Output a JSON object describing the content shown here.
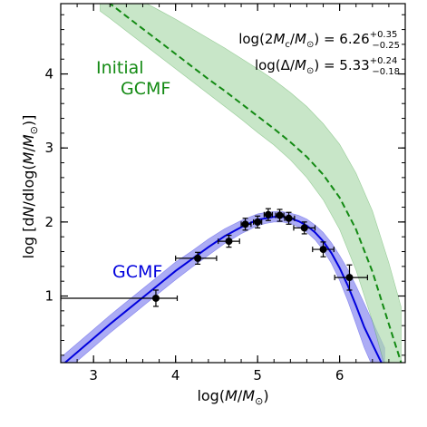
{
  "chart_data": {
    "type": "line",
    "title": "",
    "xlabel": {
      "prefix": "log(",
      "italic": "M",
      "slash": "/",
      "italic2": "M",
      "sub": "⊙",
      "suffix": ")"
    },
    "ylabel": {
      "prefix": "log [d",
      "italic": "N",
      "mid": "/dlog(",
      "italic2": "M",
      "slash": "/",
      "italic3": "M",
      "sub": "⊙",
      "suffix": ")]"
    },
    "xlim": [
      2.6,
      6.8
    ],
    "ylim": [
      0.1,
      4.95
    ],
    "xticks": [
      3,
      4,
      5,
      6
    ],
    "yticks": [
      1,
      2,
      3,
      4
    ],
    "xtick_labels": [
      "3",
      "4",
      "5",
      "6"
    ],
    "ytick_labels": [
      "1",
      "2",
      "3",
      "4"
    ],
    "grid": false,
    "annotations": [
      {
        "prefix": "log(2",
        "italic": "M",
        "sub": "c",
        "slash": "/",
        "italic2": "M",
        "sub2": "⊙",
        "suffix": ") = 6.26",
        "sup": "+0.35",
        "subv": "−0.25"
      },
      {
        "prefix": "log(Δ/",
        "italic": "M",
        "sub": "⊙",
        "suffix": ") = 5.33",
        "sup": "+0.24",
        "subv": "−0.18"
      }
    ],
    "series": [
      {
        "name": "GCMF",
        "color": "#0000dd",
        "band_color": "#8080ee",
        "x": [
          2.6,
          2.8,
          3.0,
          3.2,
          3.4,
          3.6,
          3.8,
          4.0,
          4.2,
          4.4,
          4.6,
          4.8,
          5.0,
          5.1,
          5.2,
          5.3,
          5.4,
          5.5,
          5.6,
          5.7,
          5.8,
          5.9,
          6.0,
          6.1,
          6.2,
          6.3,
          6.4,
          6.5,
          6.55
        ],
        "y": [
          0.05,
          0.24,
          0.43,
          0.62,
          0.8,
          0.98,
          1.16,
          1.34,
          1.5,
          1.66,
          1.81,
          1.93,
          2.03,
          2.05,
          2.07,
          2.07,
          2.05,
          2.01,
          1.95,
          1.86,
          1.74,
          1.58,
          1.38,
          1.14,
          0.87,
          0.58,
          0.35,
          0.12,
          0.0
        ],
        "y_low": [
          -0.07,
          0.12,
          0.31,
          0.5,
          0.68,
          0.86,
          1.04,
          1.22,
          1.39,
          1.55,
          1.71,
          1.84,
          1.95,
          1.98,
          2.0,
          2.0,
          1.98,
          1.93,
          1.86,
          1.76,
          1.62,
          1.44,
          1.21,
          0.93,
          0.62,
          0.3,
          0.05,
          -0.2,
          -0.3
        ],
        "y_high": [
          0.17,
          0.36,
          0.55,
          0.74,
          0.92,
          1.1,
          1.28,
          1.46,
          1.61,
          1.77,
          1.91,
          2.02,
          2.11,
          2.13,
          2.14,
          2.14,
          2.12,
          2.09,
          2.04,
          1.96,
          1.86,
          1.72,
          1.55,
          1.36,
          1.14,
          0.9,
          0.66,
          0.42,
          0.3
        ]
      },
      {
        "name": "Initial GCMF",
        "name_lines": [
          "Initial",
          "GCMF"
        ],
        "color": "#138a13",
        "band_color": "#aad8aa",
        "dashed": true,
        "x": [
          3.08,
          3.2,
          3.4,
          3.6,
          3.8,
          4.0,
          4.2,
          4.4,
          4.6,
          4.8,
          5.0,
          5.2,
          5.4,
          5.6,
          5.8,
          6.0,
          6.2,
          6.4,
          6.6,
          6.75
        ],
        "y": [
          5.05,
          4.95,
          4.78,
          4.61,
          4.44,
          4.27,
          4.1,
          3.93,
          3.77,
          3.6,
          3.43,
          3.26,
          3.08,
          2.88,
          2.64,
          2.33,
          1.9,
          1.33,
          0.62,
          0.1
        ],
        "y_low": [
          4.85,
          4.75,
          4.58,
          4.41,
          4.24,
          4.07,
          3.9,
          3.73,
          3.56,
          3.39,
          3.21,
          3.04,
          2.84,
          2.6,
          2.3,
          1.9,
          1.35,
          0.66,
          -0.15,
          -0.7
        ],
        "y_high": [
          5.3,
          5.22,
          5.1,
          4.98,
          4.86,
          4.74,
          4.61,
          4.48,
          4.35,
          4.21,
          4.07,
          3.92,
          3.75,
          3.56,
          3.33,
          3.05,
          2.66,
          2.15,
          1.45,
          0.85
        ]
      }
    ],
    "data_points": [
      {
        "x": 3.76,
        "y": 0.97,
        "xerr": [
          1.16,
          0.26
        ],
        "yerr": [
          0.11,
          0.11
        ]
      },
      {
        "x": 4.27,
        "y": 1.51,
        "xerr": [
          0.27,
          0.23
        ],
        "yerr": [
          0.08,
          0.08
        ]
      },
      {
        "x": 4.65,
        "y": 1.74,
        "xerr": [
          0.13,
          0.13
        ],
        "yerr": [
          0.08,
          0.08
        ]
      },
      {
        "x": 4.85,
        "y": 1.97,
        "xerr": [
          0.05,
          0.07
        ],
        "yerr": [
          0.08,
          0.08
        ]
      },
      {
        "x": 5.0,
        "y": 2.0,
        "xerr": [
          0.05,
          0.05
        ],
        "yerr": [
          0.08,
          0.08
        ]
      },
      {
        "x": 5.13,
        "y": 2.1,
        "xerr": [
          0.05,
          0.05
        ],
        "yerr": [
          0.08,
          0.08
        ]
      },
      {
        "x": 5.27,
        "y": 2.09,
        "xerr": [
          0.05,
          0.05
        ],
        "yerr": [
          0.08,
          0.08
        ]
      },
      {
        "x": 5.38,
        "y": 2.05,
        "xerr": [
          0.05,
          0.07
        ],
        "yerr": [
          0.08,
          0.08
        ]
      },
      {
        "x": 5.57,
        "y": 1.92,
        "xerr": [
          0.13,
          0.13
        ],
        "yerr": [
          0.08,
          0.08
        ]
      },
      {
        "x": 5.8,
        "y": 1.63,
        "xerr": [
          0.13,
          0.13
        ],
        "yerr": [
          0.1,
          0.1
        ]
      },
      {
        "x": 6.12,
        "y": 1.25,
        "xerr": [
          0.18,
          0.22
        ],
        "yerr": [
          0.17,
          0.17
        ]
      }
    ]
  }
}
